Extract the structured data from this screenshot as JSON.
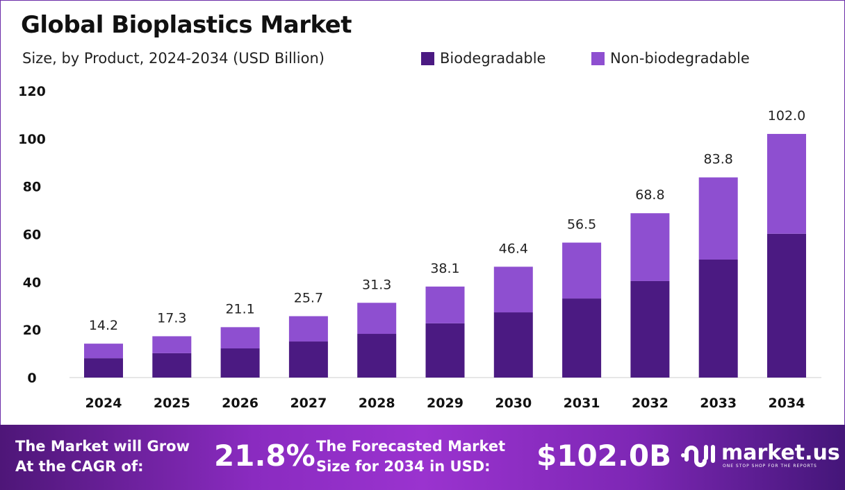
{
  "header": {
    "title": "Global Bioplastics Market",
    "subtitle": "Size, by Product, 2024-2034 (USD Billion)"
  },
  "footer": {
    "cagr_label": "The Market will Grow At the CAGR of:",
    "cagr_value": "21.8%",
    "forecast_label": "The Forecasted Market Size for 2034 in USD:",
    "forecast_value": "$102.0B",
    "logo_name": "market.us",
    "logo_tagline": "ONE STOP SHOP FOR THE REPORTS"
  },
  "chart_data": {
    "type": "bar",
    "stacked": true,
    "title": "Global Bioplastics Market",
    "subtitle": "Size, by Product, 2024-2034 (USD Billion)",
    "categories": [
      "2024",
      "2025",
      "2026",
      "2027",
      "2028",
      "2029",
      "2030",
      "2031",
      "2032",
      "2033",
      "2034"
    ],
    "series": [
      {
        "name": "Biodegradable",
        "color": "#4b1a82",
        "values": [
          8.1,
          10.2,
          12.2,
          15.1,
          18.3,
          22.7,
          27.3,
          33.1,
          40.4,
          49.4,
          60.2
        ]
      },
      {
        "name": "Non-biodegradable",
        "color": "#8e4fd0",
        "values": [
          6.1,
          7.1,
          8.9,
          10.6,
          13.0,
          15.4,
          19.1,
          23.4,
          28.4,
          34.4,
          41.8
        ]
      }
    ],
    "totals": [
      "14.2",
      "17.3",
      "21.1",
      "25.7",
      "31.3",
      "38.1",
      "46.4",
      "56.5",
      "68.8",
      "83.8",
      "102.0"
    ],
    "yticks": [
      0,
      20,
      40,
      60,
      80,
      100,
      120
    ],
    "ylim": [
      0,
      120
    ],
    "grid": false,
    "legend": "top-right"
  }
}
